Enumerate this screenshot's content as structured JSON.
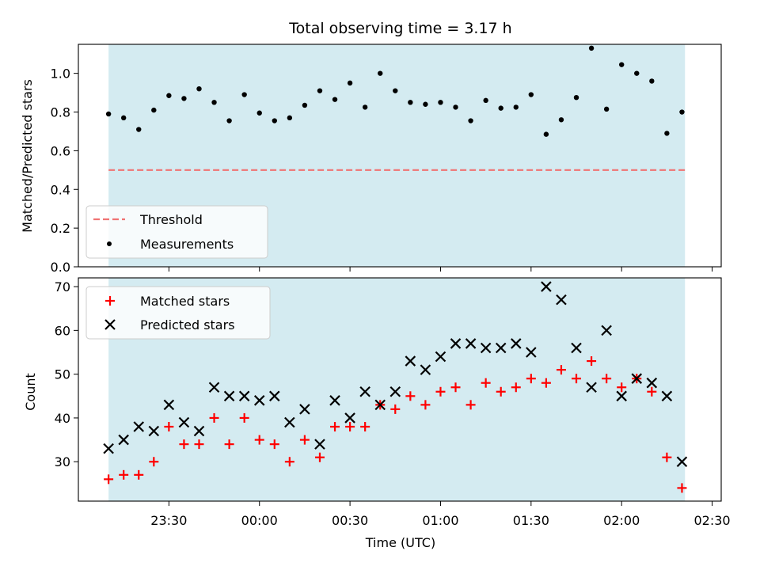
{
  "title": "Total observing time = 3.17 h",
  "xlabel": "Time (UTC)",
  "x_tick_labels": [
    "23:30",
    "00:00",
    "00:30",
    "01:00",
    "01:30",
    "02:00",
    "02:30"
  ],
  "colors": {
    "observing_band": "#d4ebf1",
    "threshold": "#f07373",
    "measurements": "#000000",
    "matched": "#ff0000",
    "predicted": "#000000"
  },
  "chart_data": [
    {
      "type": "scatter",
      "ylabel": "Matched/Predicted stars",
      "ylim": [
        0,
        1.15
      ],
      "y_ticks": [
        "0.0",
        "0.2",
        "0.4",
        "0.6",
        "0.8",
        "1.0"
      ],
      "xlim": [
        "23:00",
        "02:33"
      ],
      "observing_span": [
        "23:10",
        "02:21"
      ],
      "grid": false,
      "legend_position": "lower-left",
      "threshold": {
        "name": "Threshold",
        "value": 0.5,
        "style": "dashed"
      },
      "series": [
        {
          "name": "Measurements",
          "x": [
            "23:10",
            "23:15",
            "23:20",
            "23:25",
            "23:30",
            "23:35",
            "23:40",
            "23:45",
            "23:50",
            "23:55",
            "00:00",
            "00:05",
            "00:10",
            "00:15",
            "00:20",
            "00:25",
            "00:30",
            "00:35",
            "00:40",
            "00:45",
            "00:50",
            "00:55",
            "01:00",
            "01:05",
            "01:10",
            "01:15",
            "01:20",
            "01:25",
            "01:30",
            "01:35",
            "01:40",
            "01:45",
            "01:50",
            "01:55",
            "02:00",
            "02:05",
            "02:10",
            "02:15",
            "02:20"
          ],
          "y": [
            0.79,
            0.77,
            0.71,
            0.81,
            0.885,
            0.87,
            0.92,
            0.85,
            0.755,
            0.89,
            0.795,
            0.755,
            0.77,
            0.835,
            0.91,
            0.865,
            0.95,
            0.825,
            1.0,
            0.91,
            0.85,
            0.84,
            0.85,
            0.825,
            0.755,
            0.86,
            0.82,
            0.825,
            0.89,
            0.685,
            0.76,
            0.875,
            1.13,
            0.815,
            1.045,
            1.0,
            0.96,
            0.69,
            0.8
          ]
        }
      ]
    },
    {
      "type": "scatter",
      "ylabel": "Count",
      "ylim": [
        21,
        72
      ],
      "y_ticks": [
        "30",
        "40",
        "50",
        "60",
        "70"
      ],
      "xlim": [
        "23:00",
        "02:33"
      ],
      "observing_span": [
        "23:10",
        "02:21"
      ],
      "grid": false,
      "legend_position": "upper-left",
      "series": [
        {
          "name": "Matched stars",
          "marker": "+",
          "x": [
            "23:10",
            "23:15",
            "23:20",
            "23:25",
            "23:30",
            "23:35",
            "23:40",
            "23:45",
            "23:50",
            "23:55",
            "00:00",
            "00:05",
            "00:10",
            "00:15",
            "00:20",
            "00:25",
            "00:30",
            "00:35",
            "00:40",
            "00:45",
            "00:50",
            "00:55",
            "01:00",
            "01:05",
            "01:10",
            "01:15",
            "01:20",
            "01:25",
            "01:30",
            "01:35",
            "01:40",
            "01:45",
            "01:50",
            "01:55",
            "02:00",
            "02:05",
            "02:10",
            "02:15",
            "02:20"
          ],
          "y": [
            26,
            27,
            27,
            30,
            38,
            34,
            34,
            40,
            34,
            40,
            35,
            34,
            30,
            35,
            31,
            38,
            38,
            38,
            43,
            42,
            45,
            43,
            46,
            47,
            43,
            48,
            46,
            47,
            49,
            48,
            51,
            49,
            53,
            49,
            47,
            49,
            46,
            31,
            24
          ]
        },
        {
          "name": "Predicted stars",
          "marker": "x",
          "x": [
            "23:10",
            "23:15",
            "23:20",
            "23:25",
            "23:30",
            "23:35",
            "23:40",
            "23:45",
            "23:50",
            "23:55",
            "00:00",
            "00:05",
            "00:10",
            "00:15",
            "00:20",
            "00:25",
            "00:30",
            "00:35",
            "00:40",
            "00:45",
            "00:50",
            "00:55",
            "01:00",
            "01:05",
            "01:10",
            "01:15",
            "01:20",
            "01:25",
            "01:30",
            "01:35",
            "01:40",
            "01:45",
            "01:50",
            "01:55",
            "02:00",
            "02:05",
            "02:10",
            "02:15",
            "02:20"
          ],
          "y": [
            33,
            35,
            38,
            37,
            43,
            39,
            37,
            47,
            45,
            45,
            44,
            45,
            39,
            42,
            34,
            44,
            40,
            46,
            43,
            46,
            53,
            51,
            54,
            57,
            57,
            56,
            56,
            57,
            55,
            70,
            67,
            56,
            47,
            60,
            45,
            49,
            48,
            45,
            30
          ]
        }
      ]
    }
  ]
}
